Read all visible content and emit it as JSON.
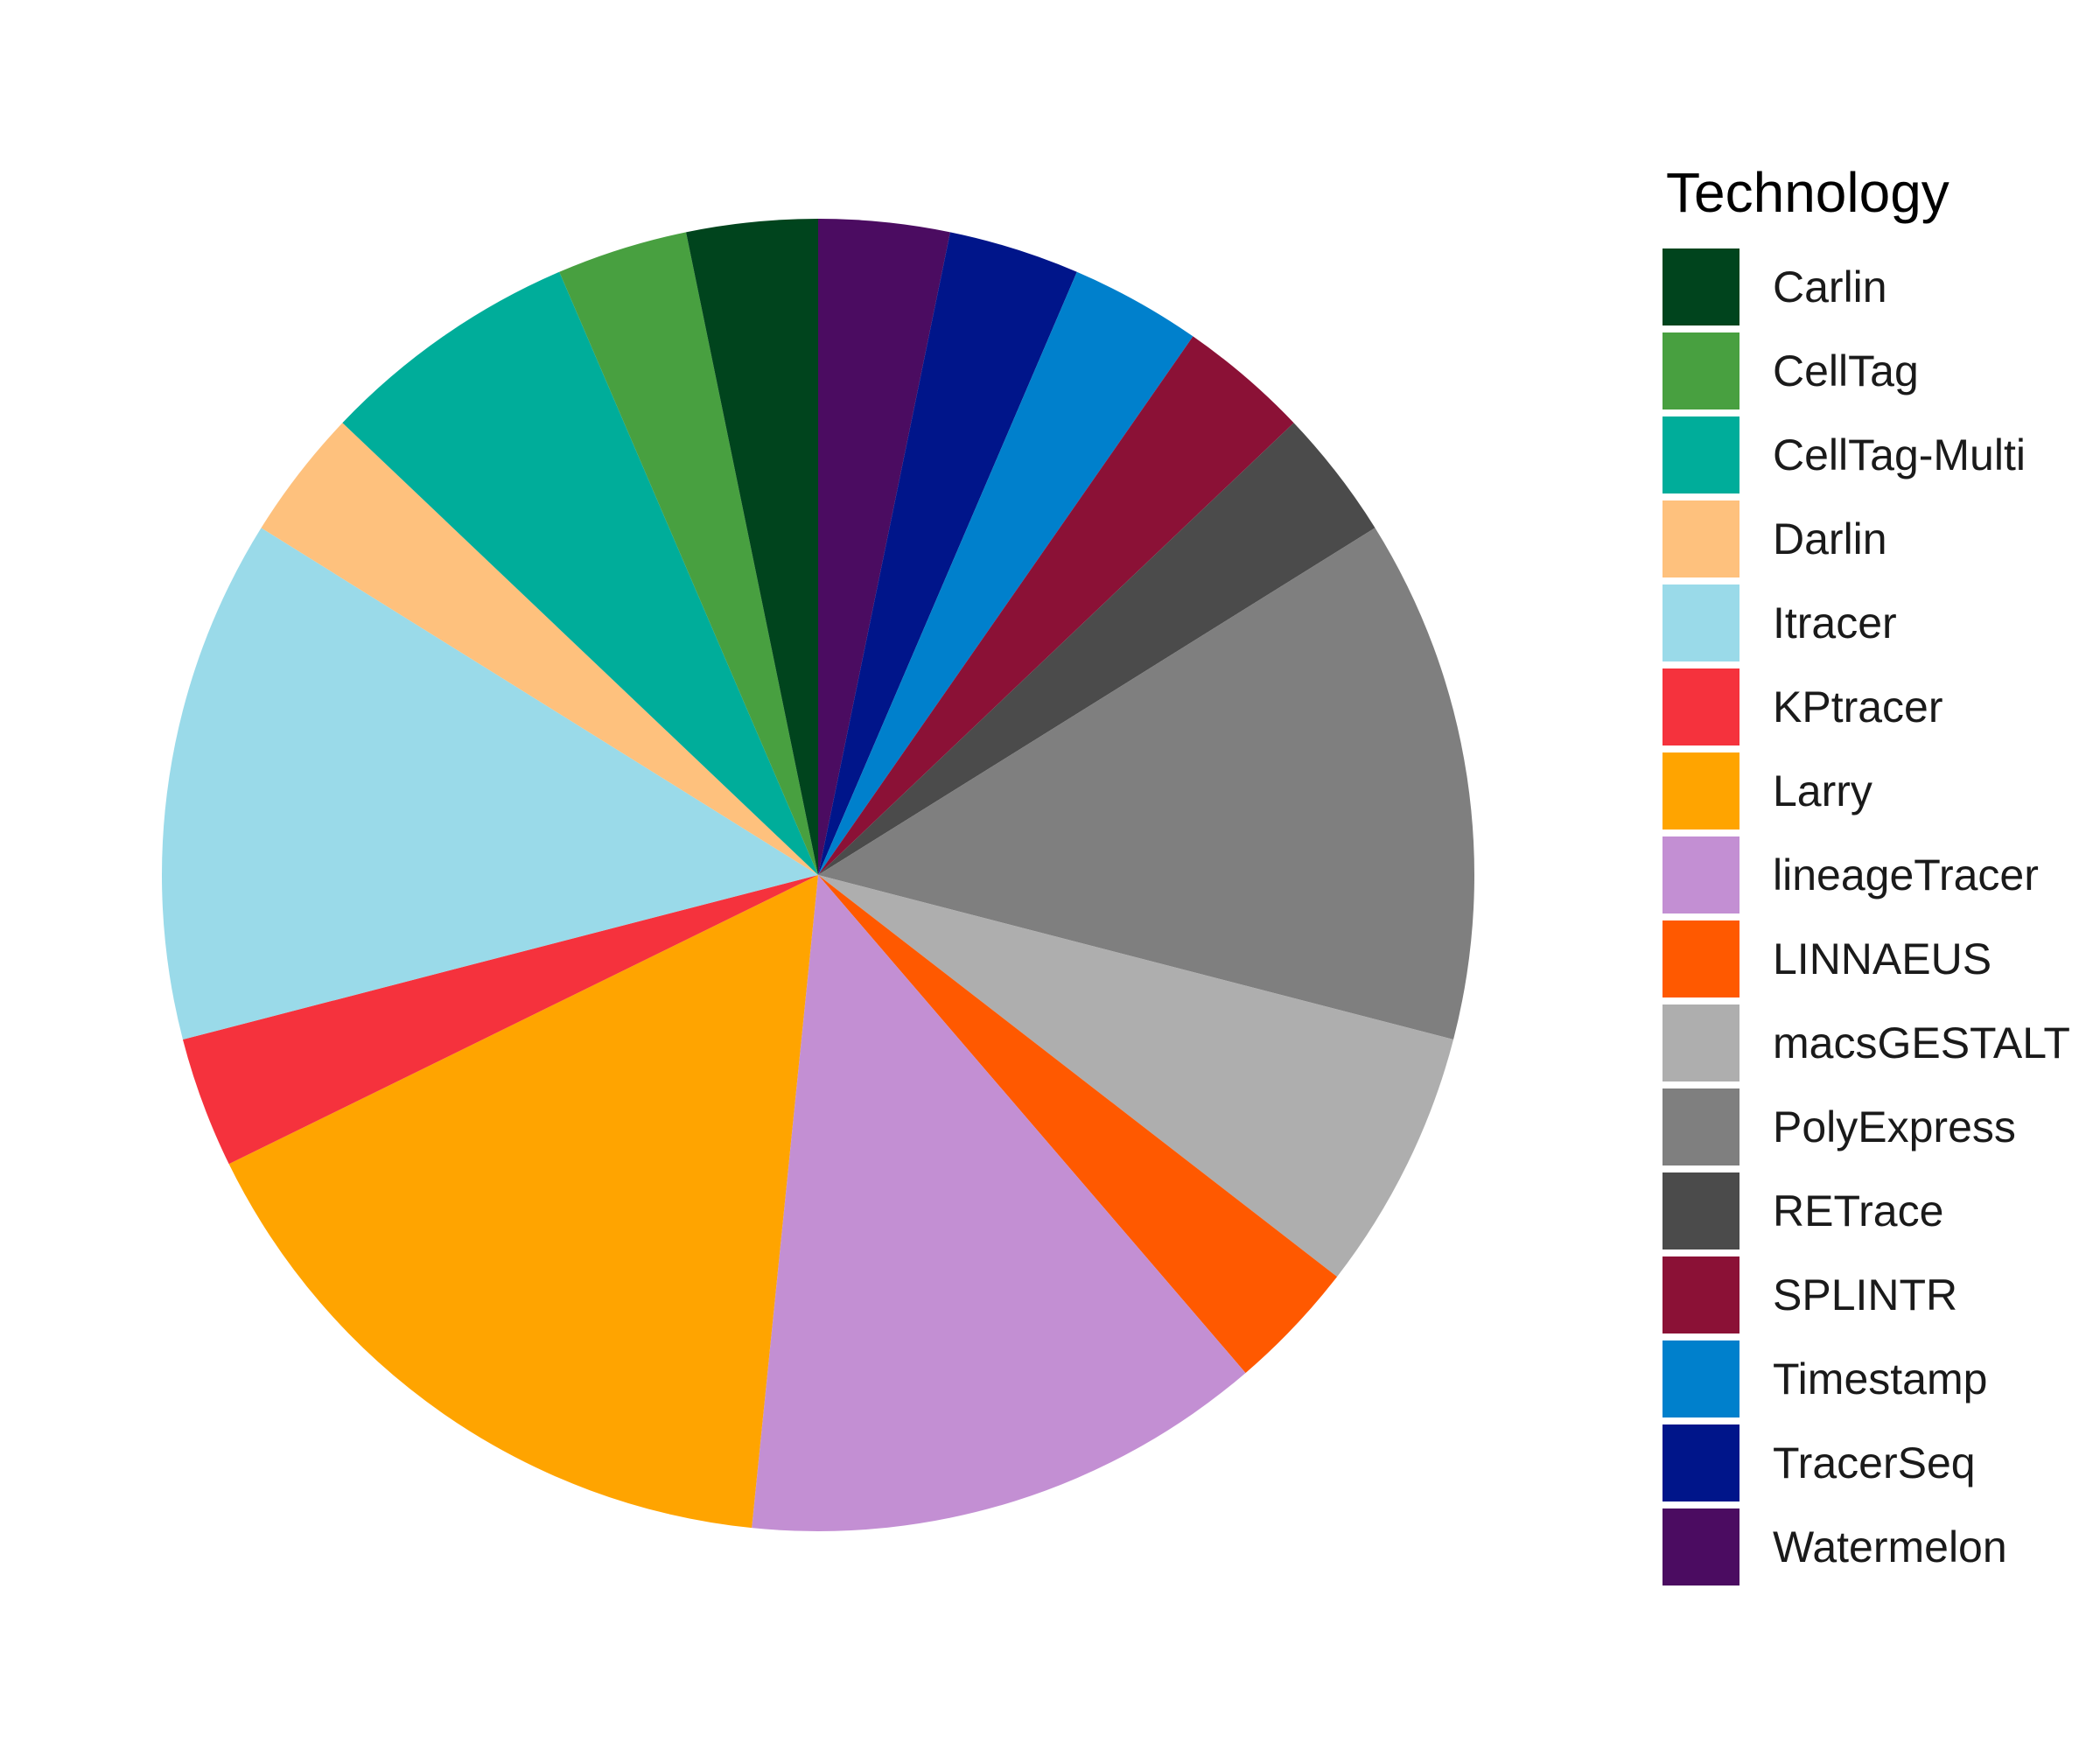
{
  "chart_data": {
    "type": "pie",
    "legend_title": "Technology",
    "legend_position": "right",
    "start": "top",
    "direction": "clockwise",
    "slices": [
      {
        "label": "Watermelon",
        "value": 1,
        "color": "#4B0C61"
      },
      {
        "label": "TracerSeq",
        "value": 1,
        "color": "#00158A"
      },
      {
        "label": "Timestamp",
        "value": 1,
        "color": "#0080CC"
      },
      {
        "label": "SPLINTR",
        "value": 1,
        "color": "#8B1136"
      },
      {
        "label": "RETrace",
        "value": 1,
        "color": "#4B4B4B"
      },
      {
        "label": "PolyExpress",
        "value": 4,
        "color": "#7F7F7F"
      },
      {
        "label": "macsGESTALT",
        "value": 2,
        "color": "#AEAEAE"
      },
      {
        "label": "LINNAEUS",
        "value": 1,
        "color": "#FF5900"
      },
      {
        "label": "lineageTracer",
        "value": 4,
        "color": "#C38FD3"
      },
      {
        "label": "Larry",
        "value": 5,
        "color": "#FFA400"
      },
      {
        "label": "KPtracer",
        "value": 1,
        "color": "#F5323D"
      },
      {
        "label": "Itracer",
        "value": 4,
        "color": "#9ADAE9"
      },
      {
        "label": "Darlin",
        "value": 1,
        "color": "#FEC17D"
      },
      {
        "label": "CellTag-Multi",
        "value": 2,
        "color": "#00AD9A"
      },
      {
        "label": "CellTag",
        "value": 1,
        "color": "#48A040"
      },
      {
        "label": "Carlin",
        "value": 1,
        "color": "#00441D"
      }
    ],
    "legend_order": [
      "Carlin",
      "CellTag",
      "CellTag-Multi",
      "Darlin",
      "Itracer",
      "KPtracer",
      "Larry",
      "lineageTracer",
      "LINNAEUS",
      "macsGESTALT",
      "PolyExpress",
      "RETrace",
      "SPLINTR",
      "Timestamp",
      "TracerSeq",
      "Watermelon"
    ]
  }
}
